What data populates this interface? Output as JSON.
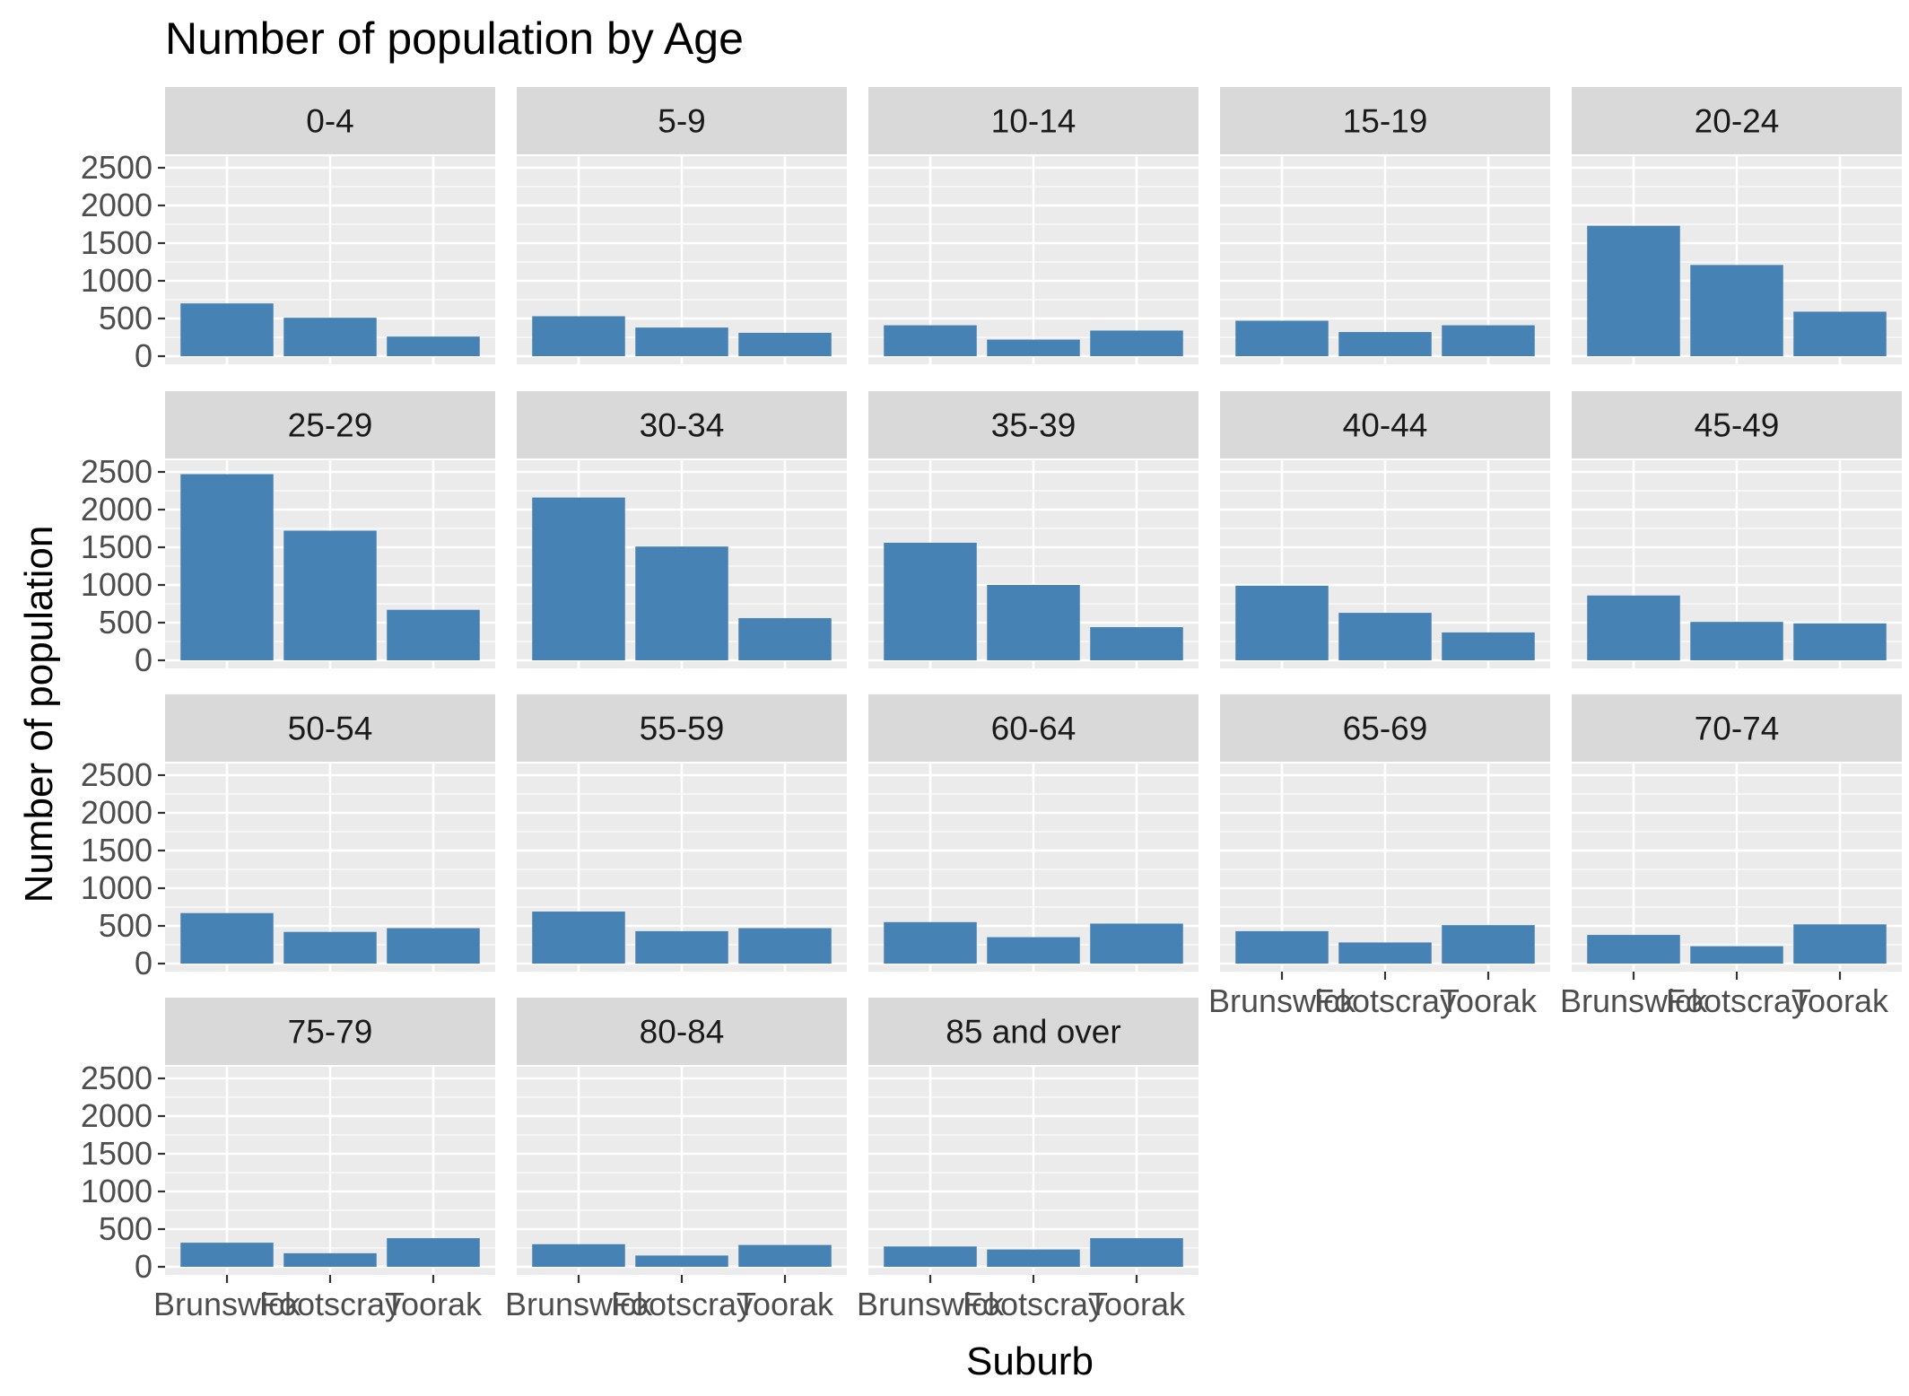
{
  "chart_data": {
    "type": "bar",
    "title": "Number of population by Age",
    "xlabel": "Suburb",
    "ylabel": "Number of population",
    "categories": [
      "Brunswick",
      "Footscray",
      "Toorak"
    ],
    "ylim": [
      0,
      2500
    ],
    "yticks": [
      0,
      500,
      1000,
      1500,
      2000,
      2500
    ],
    "facet_by": "Age",
    "grid": true,
    "bar_color": "#4682B4",
    "panel_background": "#EBEBEB",
    "strip_background": "#D9D9D9",
    "facets": [
      {
        "label": "0-4",
        "values": [
          700,
          510,
          260
        ]
      },
      {
        "label": "5-9",
        "values": [
          530,
          380,
          310
        ]
      },
      {
        "label": "10-14",
        "values": [
          410,
          220,
          340
        ]
      },
      {
        "label": "15-19",
        "values": [
          470,
          320,
          410
        ]
      },
      {
        "label": "20-24",
        "values": [
          1730,
          1210,
          590
        ]
      },
      {
        "label": "25-29",
        "values": [
          2470,
          1720,
          670
        ]
      },
      {
        "label": "30-34",
        "values": [
          2160,
          1510,
          560
        ]
      },
      {
        "label": "35-39",
        "values": [
          1560,
          1000,
          440
        ]
      },
      {
        "label": "40-44",
        "values": [
          990,
          630,
          370
        ]
      },
      {
        "label": "45-49",
        "values": [
          860,
          510,
          490
        ]
      },
      {
        "label": "50-54",
        "values": [
          670,
          420,
          470
        ]
      },
      {
        "label": "55-59",
        "values": [
          690,
          430,
          470
        ]
      },
      {
        "label": "60-64",
        "values": [
          550,
          350,
          530
        ]
      },
      {
        "label": "65-69",
        "values": [
          430,
          280,
          510
        ]
      },
      {
        "label": "70-74",
        "values": [
          380,
          230,
          520
        ]
      },
      {
        "label": "75-79",
        "values": [
          320,
          180,
          380
        ]
      },
      {
        "label": "80-84",
        "values": [
          300,
          150,
          290
        ]
      },
      {
        "label": "85 and over",
        "values": [
          270,
          230,
          380
        ]
      }
    ]
  }
}
